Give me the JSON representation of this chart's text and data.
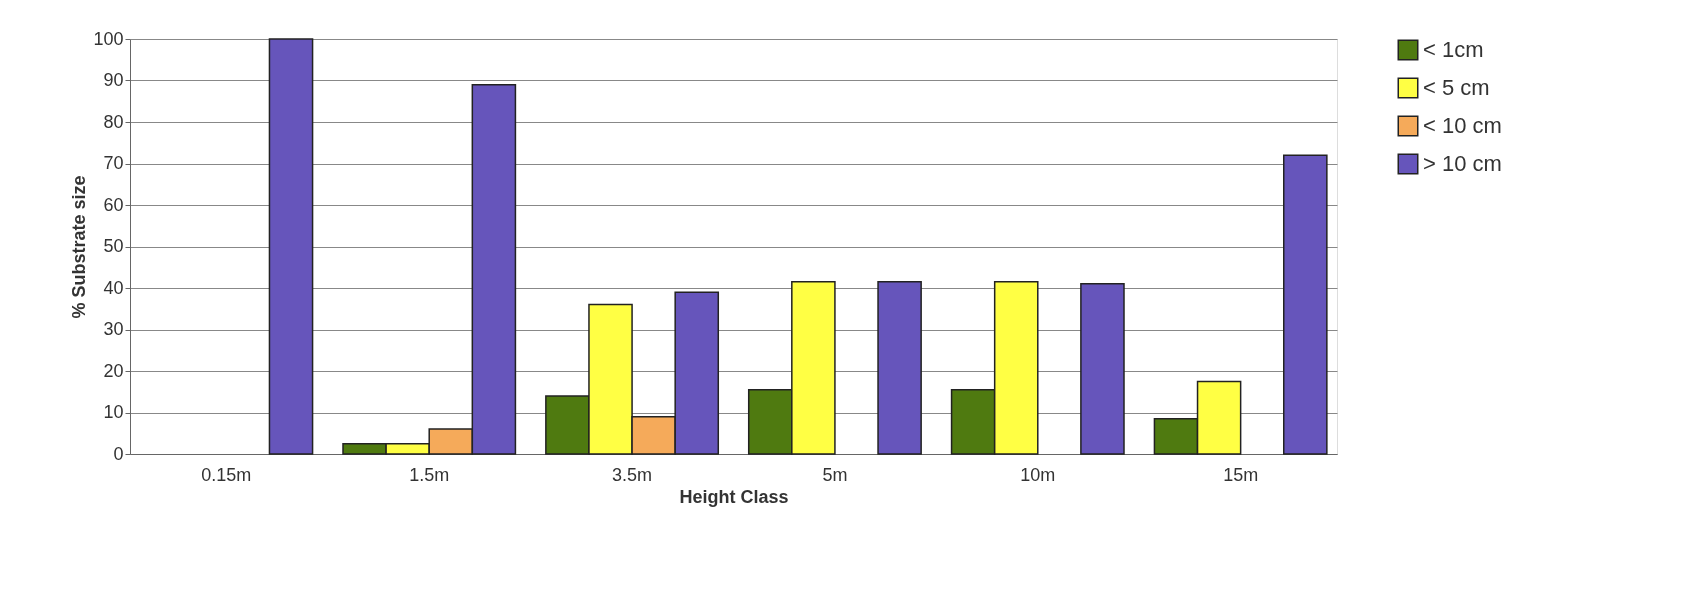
{
  "chart_data": {
    "type": "bar",
    "xlabel": "Height Class",
    "ylabel": "% Substrate size",
    "categories": [
      "0.15m",
      "1.5m",
      "3.5m",
      "5m",
      "10m",
      "15m"
    ],
    "series": [
      {
        "name": "< 1cm",
        "color": "#4f7a10",
        "values": [
          0,
          2.5,
          14,
          15.5,
          15.5,
          8.5
        ]
      },
      {
        "name": "< 5 cm",
        "color": "#ffff44",
        "values": [
          0,
          2.5,
          36,
          41.5,
          41.5,
          17.5
        ]
      },
      {
        "name": "< 10 cm",
        "color": "#f5aa5a",
        "values": [
          0,
          6,
          9,
          0,
          0,
          0
        ]
      },
      {
        "name": "> 10 cm",
        "color": "#6655bb",
        "values": [
          100,
          89,
          39,
          41.5,
          41,
          72
        ]
      }
    ],
    "ylim": [
      0,
      100
    ],
    "yticks": [
      0,
      10,
      20,
      30,
      40,
      50,
      60,
      70,
      80,
      90,
      100
    ],
    "grid": "y",
    "legend": "right"
  }
}
